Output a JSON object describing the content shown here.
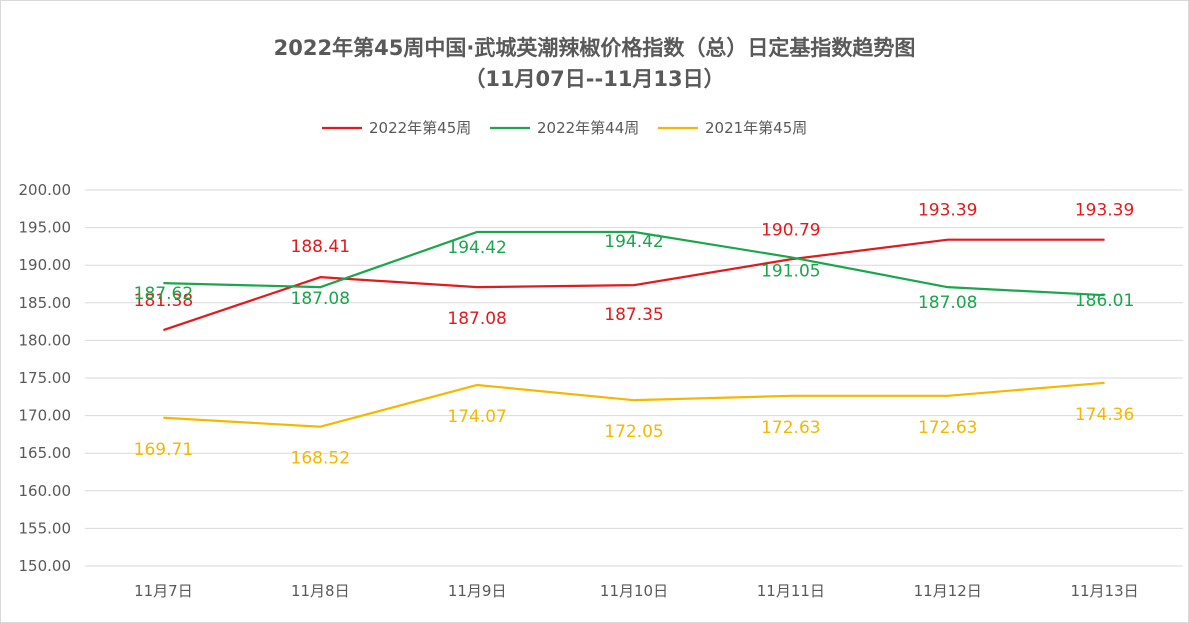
{
  "title_line1": "2022年第45周中国·武城英潮辣椒价格指数（总）日定基指数趋势图",
  "title_line2": "（11月07日--11月13日）",
  "chart_data": {
    "type": "line",
    "categories": [
      "11月7日",
      "11月8日",
      "11月9日",
      "11月10日",
      "11月11日",
      "11月12日",
      "11月13日"
    ],
    "ylim": [
      150,
      200
    ],
    "yticks": [
      "150.00",
      "155.00",
      "160.00",
      "165.00",
      "170.00",
      "175.00",
      "180.00",
      "185.00",
      "190.00",
      "195.00",
      "200.00"
    ],
    "grid": true,
    "legend_position": "top",
    "series": [
      {
        "name": "2022年第45周",
        "color": "#e31a1c",
        "values": [
          181.38,
          188.41,
          187.08,
          187.35,
          190.79,
          193.39,
          193.39
        ],
        "labels": [
          "181.38",
          "188.41",
          "187.08",
          "187.35",
          "190.79",
          "193.39",
          "193.39"
        ]
      },
      {
        "name": "2022年第44周",
        "color": "#1aa64a",
        "values": [
          187.62,
          187.08,
          194.42,
          194.42,
          191.05,
          187.08,
          186.01
        ],
        "labels": [
          "187.62",
          "187.08",
          "194.42",
          "194.42",
          "191.05",
          "187.08",
          "186.01"
        ]
      },
      {
        "name": "2021年第45周",
        "color": "#f5b800",
        "values": [
          169.71,
          168.52,
          174.07,
          172.05,
          172.63,
          172.63,
          174.36
        ],
        "labels": [
          "169.71",
          "168.52",
          "174.07",
          "172.05",
          "172.63",
          "172.63",
          "174.36"
        ]
      }
    ]
  }
}
